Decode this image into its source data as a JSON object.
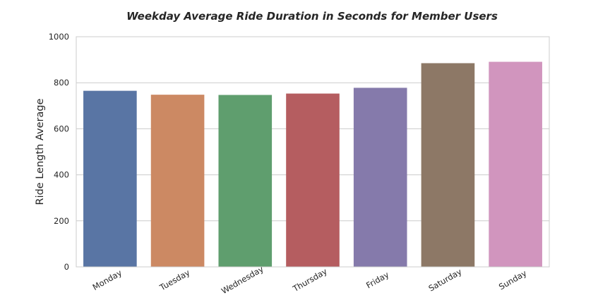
{
  "chart_data": {
    "type": "bar",
    "title": "Weekday Average Ride Duration in Seconds for Member Users",
    "xlabel": "",
    "ylabel": "Ride Length Average",
    "categories": [
      "Monday",
      "Tuesday",
      "Wednesday",
      "Thursday",
      "Friday",
      "Saturday",
      "Sunday"
    ],
    "values": [
      765,
      748,
      747,
      753,
      778,
      885,
      891
    ],
    "colors": [
      "#5975a4",
      "#cc8963",
      "#5f9e6e",
      "#b55d60",
      "#857aab",
      "#8d7866",
      "#d195be"
    ],
    "ylim": [
      0,
      1000
    ],
    "yticks": [
      0,
      200,
      400,
      600,
      800,
      1000
    ],
    "grid": true,
    "legend": "none"
  }
}
